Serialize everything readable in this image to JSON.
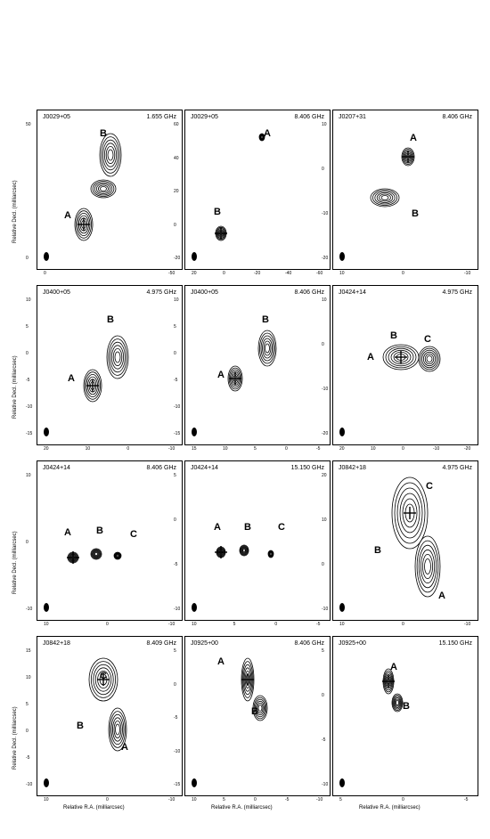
{
  "axis_labels": {
    "y": "Relative Decl. (milliarcsec)",
    "x": "Relative R.A. (milliarcsec)"
  },
  "panels": [
    {
      "name": "J0029+05",
      "freq": "1.655 GHz",
      "comps": [
        "A",
        "B"
      ],
      "yticks": [
        "50",
        "0"
      ],
      "xticks": [
        "0",
        "-50"
      ]
    },
    {
      "name": "J0029+05",
      "freq": "8.406 GHz",
      "comps": [
        "B",
        "A"
      ],
      "yticks": [
        "60",
        "40",
        "20",
        "0",
        "-20"
      ],
      "xticks": [
        "20",
        "0",
        "-20",
        "-40",
        "-60"
      ]
    },
    {
      "name": "J0207+31",
      "freq": "8.406 GHz",
      "comps": [
        "A",
        "B"
      ],
      "yticks": [
        "10",
        "0",
        "-10",
        "-20"
      ],
      "xticks": [
        "10",
        "0",
        "-10"
      ]
    },
    {
      "name": "J0400+05",
      "freq": "4.975 GHz",
      "comps": [
        "B",
        "A"
      ],
      "yticks": [
        "10",
        "5",
        "0",
        "-5",
        "-10",
        "-15"
      ],
      "xticks": [
        "20",
        "10",
        "0",
        "-10"
      ]
    },
    {
      "name": "J0400+05",
      "freq": "8.406 GHz",
      "comps": [
        "B",
        "A"
      ],
      "yticks": [
        "10",
        "5",
        "0",
        "-5",
        "-10",
        "-15"
      ],
      "xticks": [
        "15",
        "10",
        "5",
        "0",
        "-5"
      ]
    },
    {
      "name": "J0424+14",
      "freq": "4.975 GHz",
      "comps": [
        "B",
        "C",
        "A"
      ],
      "yticks": [
        "10",
        "0",
        "-10",
        "-20"
      ],
      "xticks": [
        "20",
        "10",
        "0",
        "-10",
        "-20"
      ]
    },
    {
      "name": "J0424+14",
      "freq": "8.406 GHz",
      "comps": [
        "A",
        "B",
        "C"
      ],
      "yticks": [
        "10",
        "0",
        "-10"
      ],
      "xticks": [
        "10",
        "0",
        "-10"
      ]
    },
    {
      "name": "J0424+14",
      "freq": "15.150 GHz",
      "comps": [
        "A",
        "B",
        "C"
      ],
      "yticks": [
        "5",
        "0",
        "-5",
        "-10"
      ],
      "xticks": [
        "10",
        "5",
        "0",
        "-5"
      ]
    },
    {
      "name": "J0842+18",
      "freq": "4.975 GHz",
      "comps": [
        "C",
        "B",
        "A"
      ],
      "yticks": [
        "20",
        "10",
        "0",
        "-10"
      ],
      "xticks": [
        "10",
        "0",
        "-10"
      ]
    },
    {
      "name": "J0842+18",
      "freq": "8.409 GHz",
      "comps": [
        "C",
        "B",
        "A"
      ],
      "yticks": [
        "15",
        "10",
        "5",
        "0",
        "-5",
        "-10"
      ],
      "xticks": [
        "10",
        "0",
        "-10"
      ]
    },
    {
      "name": "J0925+00",
      "freq": "8.406 GHz",
      "comps": [
        "A",
        "B"
      ],
      "yticks": [
        "5",
        "0",
        "-5",
        "-10",
        "-15"
      ],
      "xticks": [
        "10",
        "5",
        "0",
        "-5",
        "-10"
      ]
    },
    {
      "name": "J0925+00",
      "freq": "15.150 GHz",
      "comps": [
        "A",
        "B"
      ],
      "yticks": [
        "5",
        "0",
        "-5",
        "-10"
      ],
      "xticks": [
        "5",
        "0",
        "-5"
      ]
    }
  ]
}
